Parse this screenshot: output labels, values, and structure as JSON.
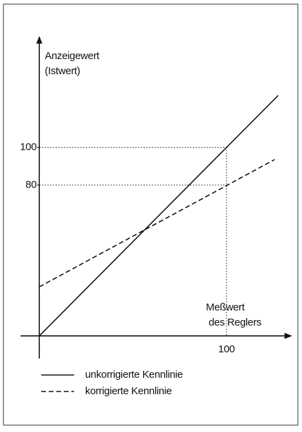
{
  "chart_data": {
    "type": "line",
    "y_label": [
      "Anzeigewert",
      "(Istwert)"
    ],
    "x_label": [
      "Meßwert",
      "des Reglers"
    ],
    "xlim": [
      -10,
      133
    ],
    "ylim": [
      -12,
      157
    ],
    "xticks": [
      100
    ],
    "yticks": [
      80,
      100
    ],
    "color": "#111111",
    "series": [
      {
        "name": "unkorrigierte Kennlinie",
        "dash": "solid",
        "x": [
          0,
          127.6
        ],
        "values": [
          0,
          127.5
        ]
      },
      {
        "name": "korrigierte Kennlinie",
        "dash": "dashed",
        "x": [
          0,
          125.7
        ],
        "values": [
          26,
          93.5
        ]
      }
    ]
  }
}
